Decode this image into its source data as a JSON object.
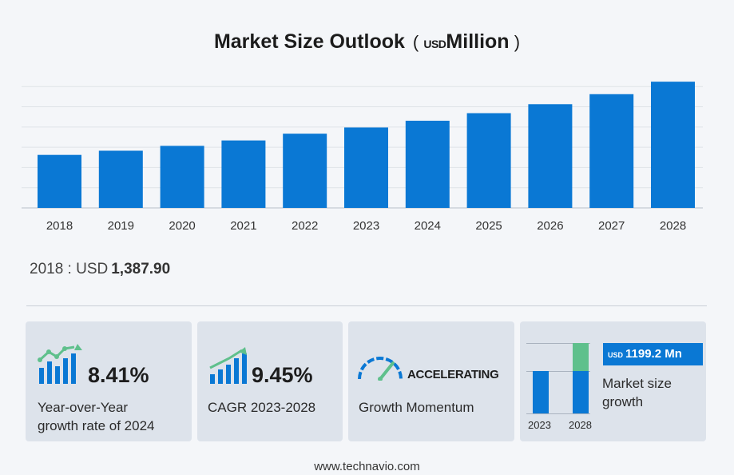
{
  "title": "Market Size Outlook",
  "title_unit_prefix": "(",
  "title_unit_currency": "USD",
  "title_unit_word": "Million",
  "title_unit_suffix": ")",
  "chart_data": {
    "type": "bar",
    "title": "Market Size Outlook ( USD Million )",
    "categories": [
      "2018",
      "2019",
      "2020",
      "2021",
      "2022",
      "2023",
      "2024",
      "2025",
      "2026",
      "2027",
      "2028"
    ],
    "values": [
      1387.9,
      1497,
      1624,
      1766,
      1943,
      2105,
      2282,
      2480,
      2715,
      2977,
      3304
    ],
    "ylim": [
      0,
      3600
    ],
    "grid": true,
    "color": "#0a78d4"
  },
  "base_year": {
    "label": "2018 : USD",
    "value": "1,387.90"
  },
  "cards": {
    "yoy": {
      "value": "8.41%",
      "line1": "Year-over-Year",
      "line2": "growth rate of 2024"
    },
    "cagr": {
      "value": "9.45%",
      "line1": "CAGR  2023-2028"
    },
    "momentum": {
      "value": "ACCELERATING",
      "line1": "Growth Momentum"
    },
    "growth": {
      "badge_unit": "USD",
      "badge_value": "1199.2 Mn",
      "line1": "Market size",
      "line2": "growth",
      "year_a": "2023",
      "year_b": "2028"
    }
  },
  "colors": {
    "accent": "#0a78d4",
    "green": "#5fc08c",
    "card_bg": "#dde3eb",
    "bg": "#f4f6f9"
  },
  "icons": [
    "growth-chart-icon",
    "bar-trend-icon",
    "speedometer-icon"
  ],
  "footer": "www.technavio.com"
}
